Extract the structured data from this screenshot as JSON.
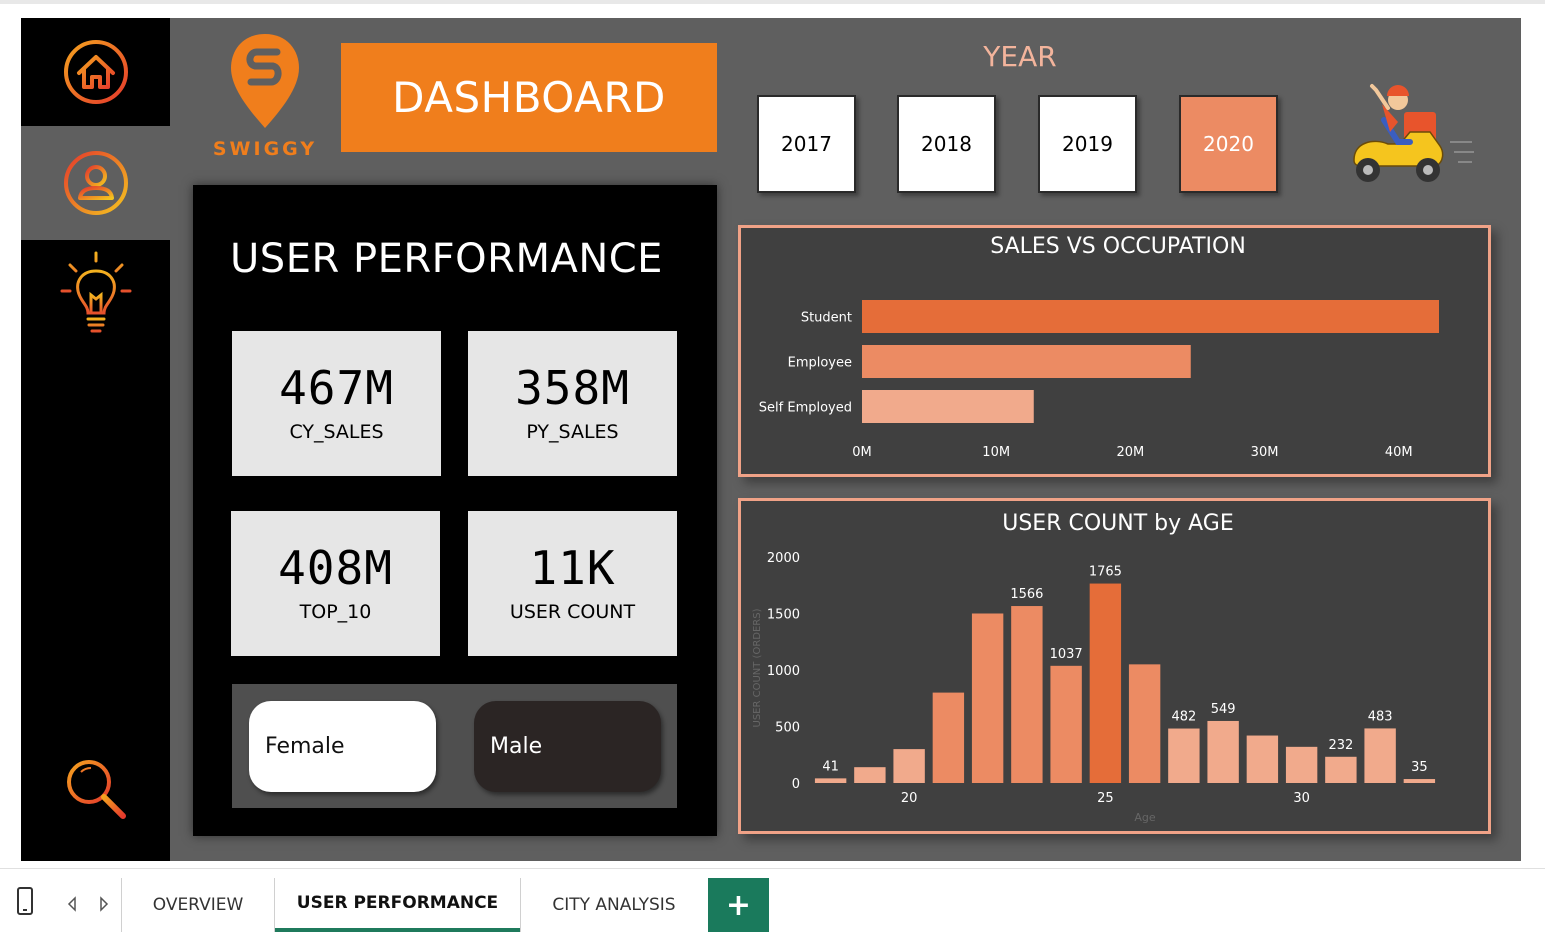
{
  "app": {
    "logo_text": "SWIGGY",
    "title": "DASHBOARD",
    "colors": {
      "accent": "#f07e1c",
      "bar_dark": "#e56d39",
      "bar_mid": "#ec8b63",
      "bar_light": "#f1aa8c",
      "panel_border": "#f0a287",
      "tab_active": "#1f7a5c"
    }
  },
  "sidebar": {
    "items": [
      {
        "icon": "home-icon"
      },
      {
        "icon": "user-icon"
      },
      {
        "icon": "bulb-icon"
      },
      {
        "icon": "search-icon"
      }
    ]
  },
  "year_filter": {
    "label": "YEAR",
    "options": [
      "2017",
      "2018",
      "2019",
      "2020"
    ],
    "selected": "2020"
  },
  "user_performance": {
    "title": "USER PERFORMANCE",
    "kpis": [
      {
        "value": "467M",
        "label": "CY_SALES"
      },
      {
        "value": "358M",
        "label": "PY_SALES"
      },
      {
        "value": "408M",
        "label": "TOP_10"
      },
      {
        "value": "11K",
        "label": "USER COUNT"
      }
    ],
    "gender": {
      "female": "Female",
      "male": "Male"
    }
  },
  "chart_data": [
    {
      "type": "bar",
      "orientation": "horizontal",
      "title": "SALES VS OCCUPATION",
      "categories": [
        "Student",
        "Employee",
        "Self Employed"
      ],
      "values": [
        43,
        24.5,
        12.8
      ],
      "unit": "M",
      "xlim": [
        0,
        43
      ],
      "xticks": [
        "0M",
        "10M",
        "20M",
        "30M",
        "40M"
      ],
      "xtick_values": [
        0,
        10,
        20,
        30,
        40
      ]
    },
    {
      "type": "bar",
      "title": "USER COUNT by AGE",
      "xlabel": "Age",
      "ylabel": "USER COUNT (ORDERS)",
      "x": [
        18,
        19,
        20,
        21,
        22,
        23,
        24,
        25,
        26,
        27,
        28,
        29,
        30,
        31,
        32,
        33
      ],
      "values": [
        41,
        140,
        300,
        800,
        1500,
        1566,
        1037,
        1765,
        1050,
        482,
        549,
        420,
        320,
        232,
        483,
        35
      ],
      "data_labels": [
        "41",
        "",
        "",
        "",
        "",
        "1566",
        "1037",
        "1765",
        "",
        "482",
        "549",
        "",
        "",
        "232",
        "483",
        "35"
      ],
      "ylim": [
        0,
        2000
      ],
      "yticks": [
        "0",
        "500",
        "1000",
        "1500",
        "2000"
      ],
      "ytick_values": [
        0,
        500,
        1000,
        1500,
        2000
      ],
      "xticks": [
        "20",
        "25",
        "30"
      ],
      "xtick_values": [
        20,
        25,
        30
      ]
    }
  ],
  "tabs": {
    "items": [
      "OVERVIEW",
      "USER PERFORMANCE",
      "CITY ANALYSIS"
    ],
    "active": "USER PERFORMANCE",
    "add_label": "+"
  }
}
